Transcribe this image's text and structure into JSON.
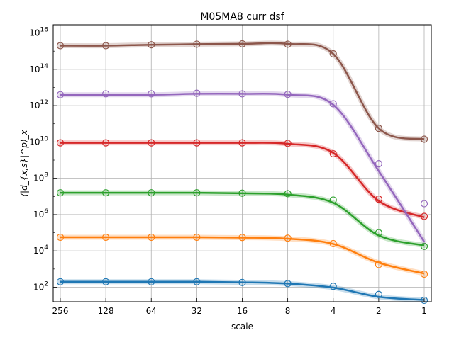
{
  "chart_data": {
    "type": "line",
    "title": "M05MA8 curr dsf",
    "xlabel": "scale",
    "ylabel": "⟨|d_{x,s}|^p⟩_x",
    "x_scale": "log2, reversed",
    "y_scale": "log",
    "x_ticks": [
      256,
      128,
      64,
      32,
      16,
      8,
      4,
      2,
      1
    ],
    "x_tick_labels": [
      "256",
      "128",
      "64",
      "32",
      "16",
      "8",
      "4",
      "2",
      "1"
    ],
    "y_tick_exponents": [
      2,
      4,
      6,
      8,
      10,
      12,
      14,
      16
    ],
    "y_tick_labels": [
      "10^2",
      "10^4",
      "10^6",
      "10^8",
      "10^10",
      "10^12",
      "10^14",
      "10^16"
    ],
    "ylim_log10": [
      1.2,
      16.45
    ],
    "grid": true,
    "series": [
      {
        "color": "#1f77b4",
        "scale": [
          256,
          128,
          64,
          32,
          16,
          8,
          4,
          2,
          1
        ],
        "log10_curve": [
          2.3,
          2.3,
          2.3,
          2.3,
          2.27,
          2.2,
          1.98,
          1.47,
          1.3
        ],
        "log10_markers": [
          2.3,
          2.3,
          2.3,
          2.3,
          2.26,
          2.2,
          2.05,
          1.6,
          1.28
        ]
      },
      {
        "color": "#ff7f0e",
        "scale": [
          256,
          128,
          64,
          32,
          16,
          8,
          4,
          2,
          1
        ],
        "log10_curve": [
          4.75,
          4.75,
          4.75,
          4.75,
          4.73,
          4.67,
          4.38,
          3.35,
          2.75
        ],
        "log10_markers": [
          4.75,
          4.75,
          4.75,
          4.75,
          4.74,
          4.7,
          4.4,
          3.25,
          2.72
        ]
      },
      {
        "color": "#2ca02c",
        "scale": [
          256,
          128,
          64,
          32,
          16,
          8,
          4,
          2,
          1
        ],
        "log10_curve": [
          7.2,
          7.2,
          7.2,
          7.2,
          7.17,
          7.1,
          6.65,
          4.85,
          4.3
        ],
        "log10_markers": [
          7.2,
          7.2,
          7.2,
          7.2,
          7.18,
          7.15,
          6.8,
          5.0,
          4.25
        ]
      },
      {
        "color": "#d62728",
        "scale": [
          256,
          128,
          64,
          32,
          16,
          8,
          4,
          2,
          1
        ],
        "log10_curve": [
          9.95,
          9.95,
          9.95,
          9.95,
          9.95,
          9.9,
          9.4,
          6.75,
          5.85
        ],
        "log10_markers": [
          9.95,
          9.95,
          9.95,
          9.95,
          9.95,
          9.92,
          9.35,
          6.85,
          5.9
        ]
      },
      {
        "color": "#9467bd",
        "scale": [
          256,
          128,
          64,
          32,
          16,
          8,
          4,
          2,
          1
        ],
        "log10_curve": [
          12.6,
          12.6,
          12.6,
          12.65,
          12.65,
          12.6,
          12.05,
          8.4,
          4.5
        ],
        "log10_markers": [
          12.6,
          12.65,
          12.65,
          12.68,
          12.65,
          12.62,
          12.1,
          8.8,
          6.6
        ]
      },
      {
        "color": "#8c564b",
        "scale": [
          256,
          128,
          64,
          32,
          16,
          8,
          4,
          2,
          1
        ],
        "log10_curve": [
          15.3,
          15.3,
          15.35,
          15.38,
          15.4,
          15.4,
          14.85,
          10.75,
          10.15
        ],
        "log10_markers": [
          15.3,
          15.3,
          15.35,
          15.38,
          15.4,
          15.38,
          14.85,
          10.75,
          10.15
        ]
      }
    ]
  }
}
